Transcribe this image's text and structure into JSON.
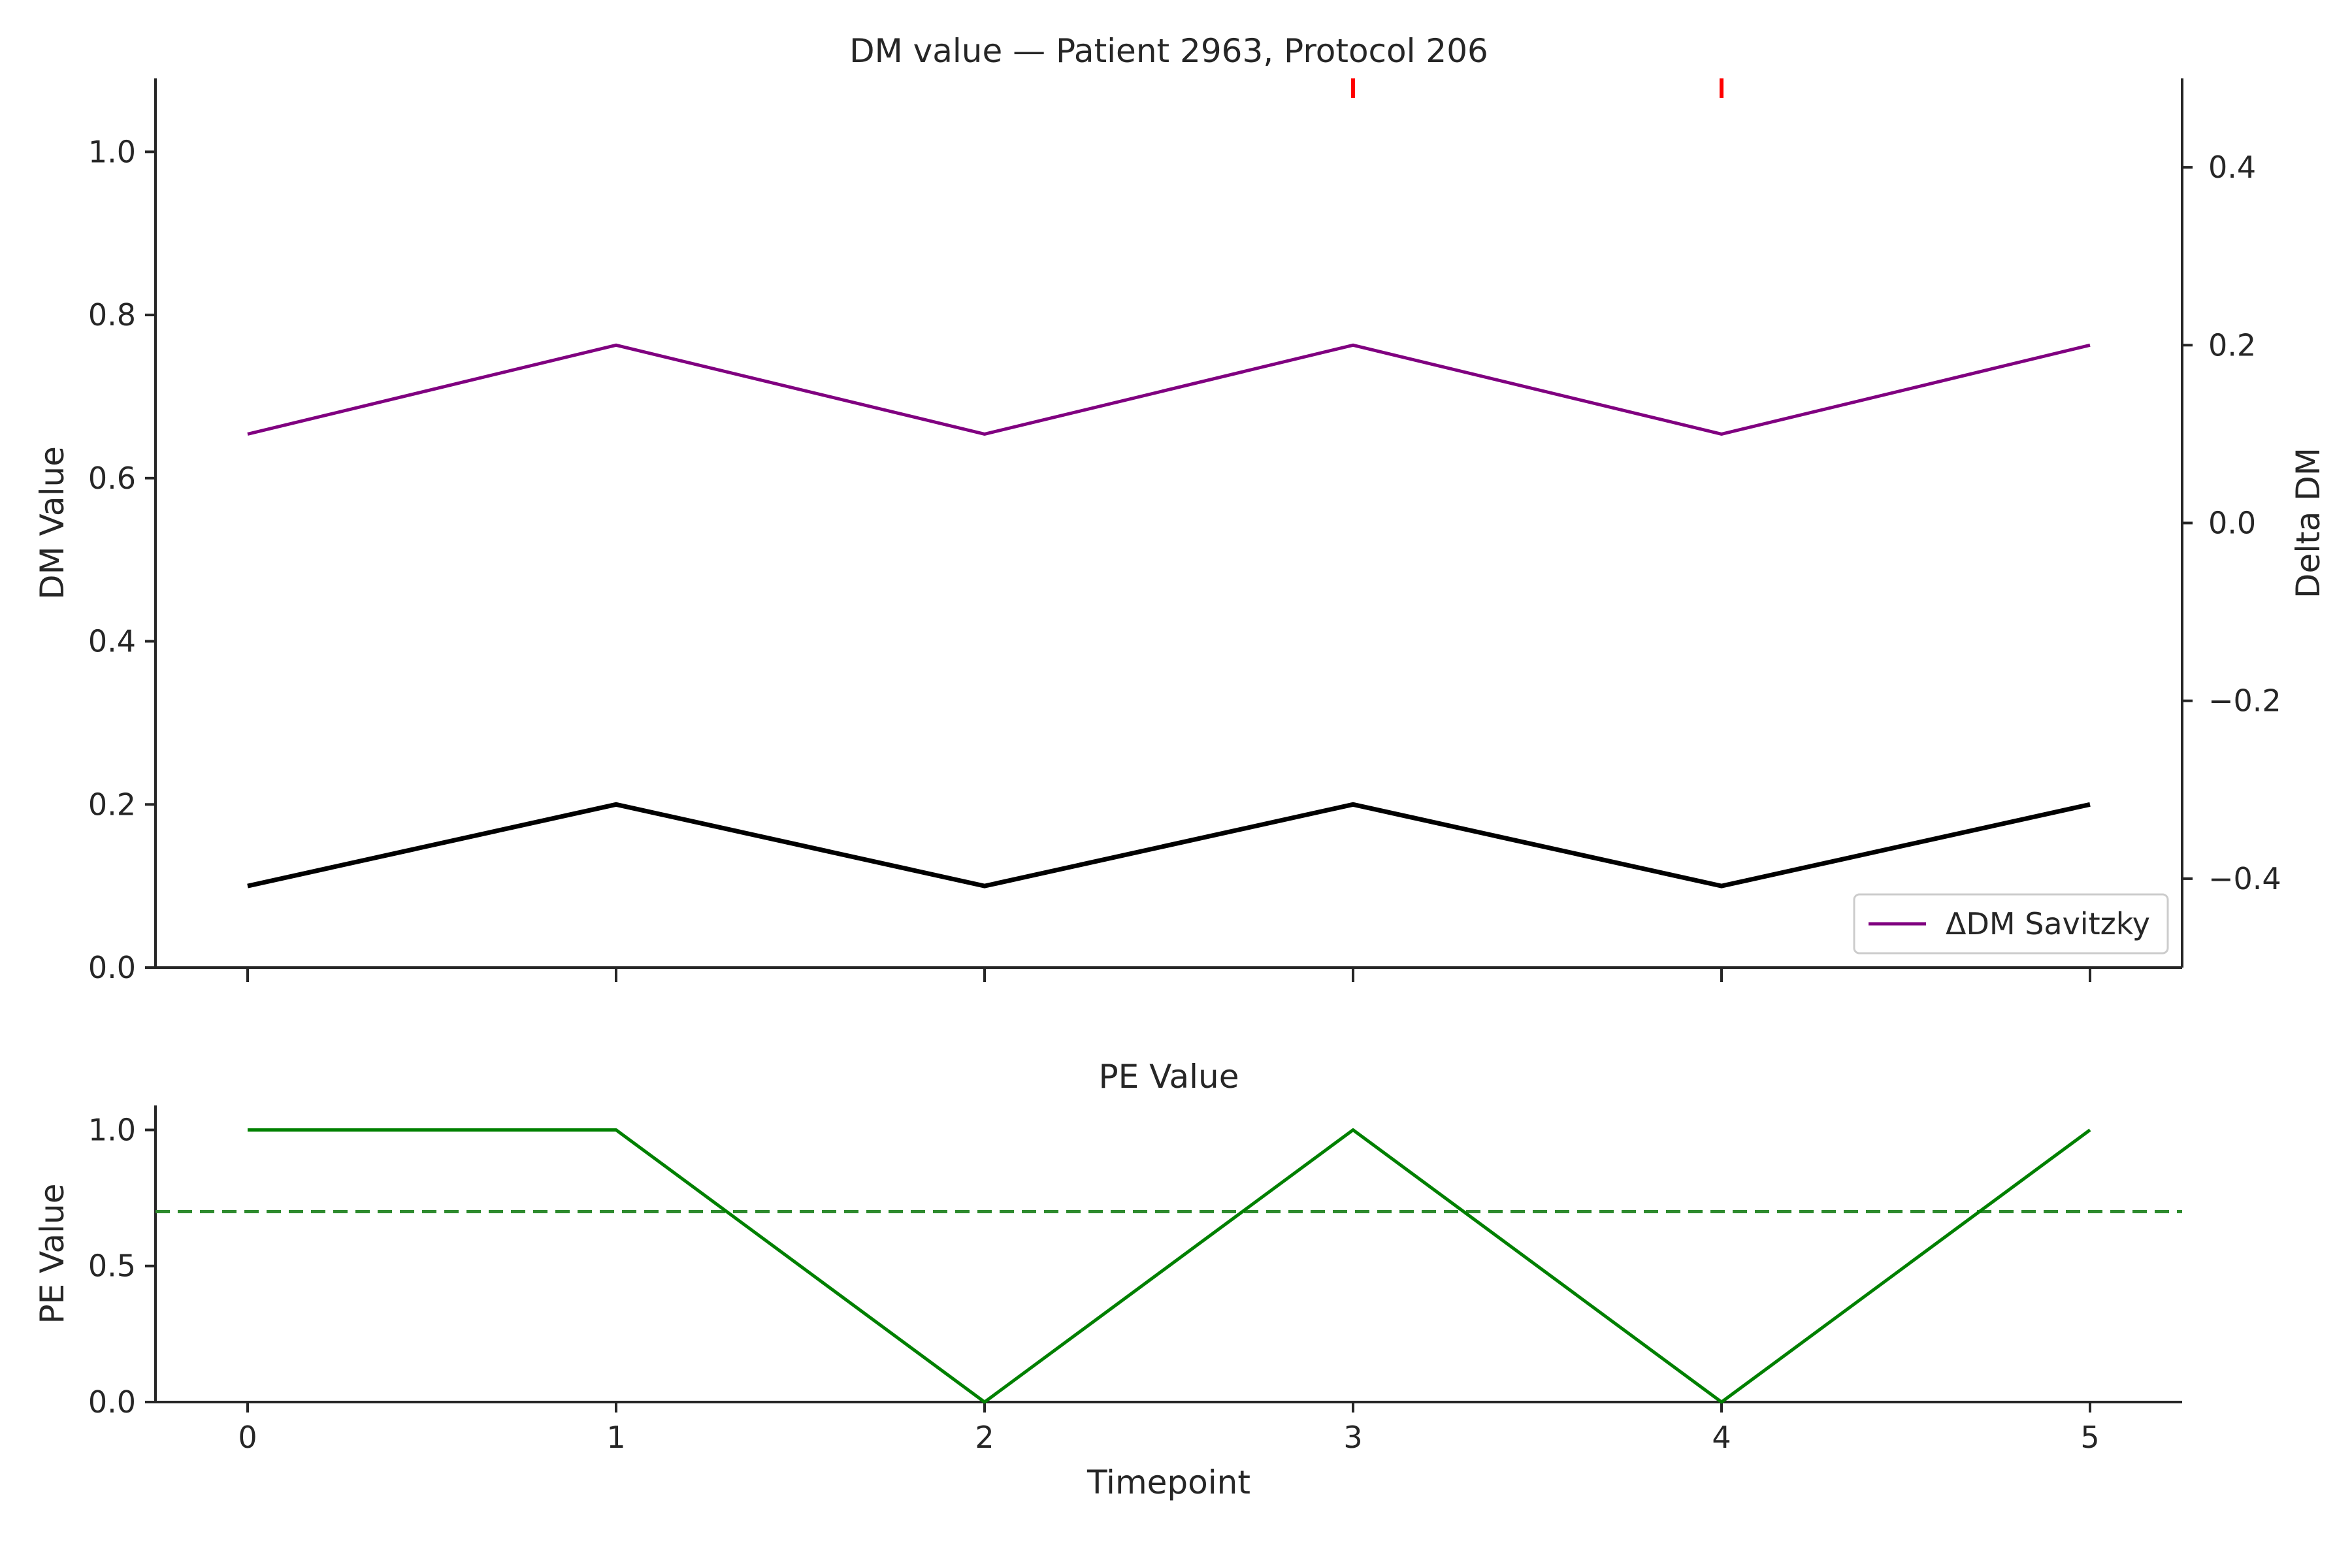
{
  "chart_data": [
    {
      "type": "line",
      "title": "DM value — Patient 2963, Protocol 206",
      "ylabel": "DM Value",
      "y2label": "Delta DM",
      "x": [
        0,
        1,
        2,
        3,
        4,
        5
      ],
      "xlim": [
        -0.25,
        5.25
      ],
      "ylim": [
        0,
        1.09
      ],
      "y2lim": [
        -0.5,
        0.5
      ],
      "yticks": [
        "0.0",
        "0.2",
        "0.4",
        "0.6",
        "0.8",
        "1.0"
      ],
      "y2ticks": [
        "−0.4",
        "−0.2",
        "0.0",
        "0.2",
        "0.4"
      ],
      "series": [
        {
          "values": [
            0.1,
            0.2,
            0.1,
            0.2,
            0.1,
            0.2
          ],
          "axis": "left",
          "color": "#000000",
          "style": "solid-thick"
        },
        {
          "name": "ΔDM Savitzky",
          "values": [
            0.1,
            0.2,
            0.1,
            0.2,
            0.1,
            0.2
          ],
          "axis": "right",
          "color": "#800080",
          "style": "solid"
        }
      ],
      "markers": {
        "x": [
          3,
          4
        ],
        "color": "#ff0000",
        "position": "top"
      },
      "legend": {
        "position": "lower-right",
        "entries": [
          "ΔDM Savitzky"
        ]
      },
      "grid": false
    },
    {
      "type": "line",
      "title": "PE Value",
      "xlabel": "Timepoint",
      "ylabel": "PE Value",
      "x": [
        0,
        1,
        2,
        3,
        4,
        5
      ],
      "xticks": [
        "0",
        "1",
        "2",
        "3",
        "4",
        "5"
      ],
      "xlim": [
        -0.25,
        5.25
      ],
      "ylim": [
        0,
        1.09
      ],
      "yticks": [
        "0.0",
        "0.5",
        "1.0"
      ],
      "series": [
        {
          "values": [
            1,
            1,
            0,
            1,
            0,
            1
          ],
          "color": "#008000",
          "style": "solid"
        }
      ],
      "threshold": {
        "value": 0.7,
        "color": "#2e8b2e",
        "style": "dashed"
      },
      "grid": false
    }
  ]
}
